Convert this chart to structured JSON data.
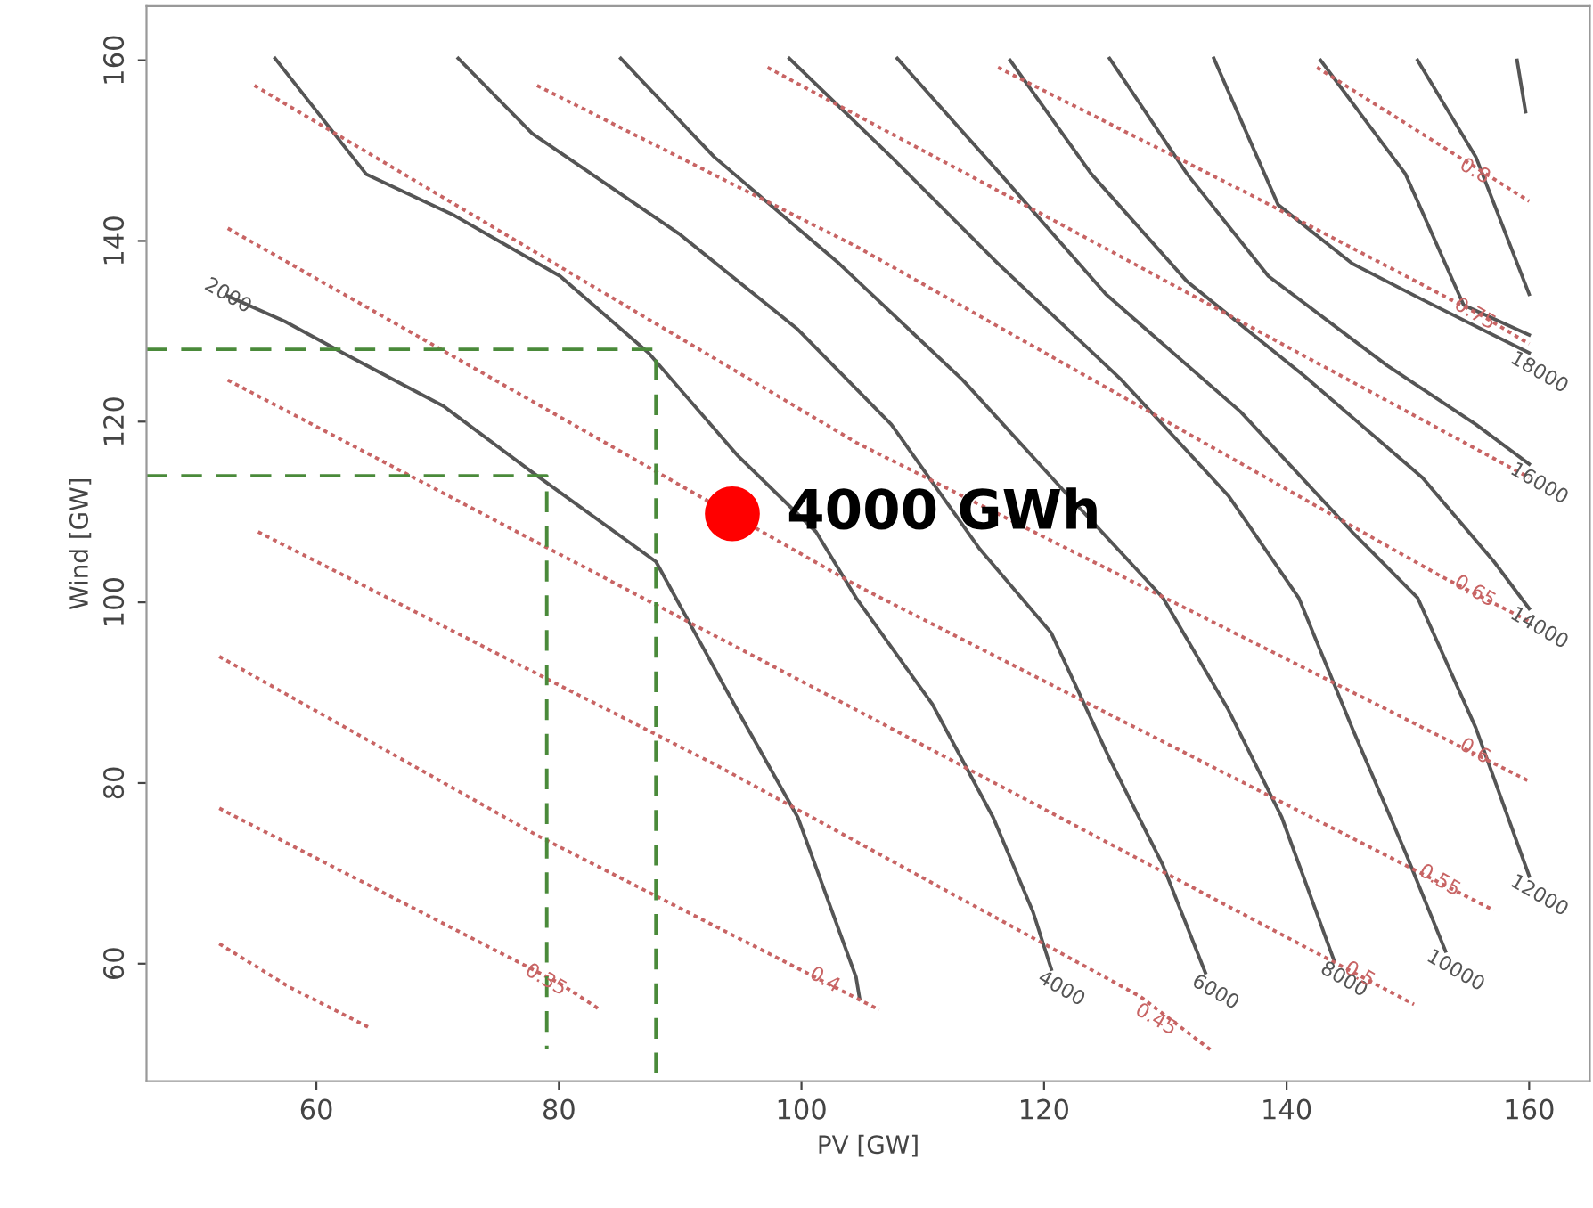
{
  "chart_data": {
    "type": "line",
    "xlabel": "PV [GW]",
    "ylabel": "Wind [GW]",
    "xlim": [
      46,
      165
    ],
    "ylim": [
      47,
      166
    ],
    "xticks": [
      60,
      80,
      100,
      120,
      140,
      160
    ],
    "yticks": [
      60,
      80,
      100,
      120,
      140,
      160
    ],
    "grid": false,
    "legend": false,
    "marker": "none",
    "series": [
      {
        "name": "2000",
        "color": "#555555",
        "line_style": "solid",
        "x": [
          52.7,
          57.4,
          62.2,
          70.5,
          77.8,
          88.0,
          94.7,
          99.7,
          104.5,
          104.8
        ],
        "values": [
          133.9,
          131.1,
          127.6,
          121.7,
          114.4,
          104.5,
          88.1,
          76.2,
          58.5,
          56.1
        ]
      },
      {
        "name": "4000",
        "color": "#555555",
        "line_style": "solid",
        "x": [
          56.6,
          64.1,
          71.4,
          80.1,
          87.4,
          94.7,
          101.2,
          104.5,
          110.8,
          115.8,
          119.1,
          120.6
        ],
        "values": [
          160.2,
          147.4,
          142.8,
          136.1,
          127.6,
          116.3,
          107.8,
          100.5,
          88.7,
          76.2,
          65.7,
          59.4
        ]
      },
      {
        "name": "6000",
        "color": "#555555",
        "line_style": "solid",
        "x": [
          71.7,
          77.8,
          89.9,
          99.7,
          107.4,
          114.7,
          120.6,
          125.4,
          129.8,
          133.3
        ],
        "values": [
          160.2,
          151.9,
          140.8,
          130.2,
          119.7,
          105.9,
          96.6,
          82.7,
          70.9,
          59.0
        ]
      },
      {
        "name": "8000",
        "color": "#555555",
        "line_style": "solid",
        "x": [
          85.1,
          92.8,
          103.1,
          113.3,
          122.0,
          129.8,
          135.2,
          139.6,
          143.9
        ],
        "values": [
          160.2,
          149.3,
          137.5,
          124.6,
          111.8,
          100.5,
          88.1,
          76.2,
          60.4
        ]
      },
      {
        "name": "10000",
        "color": "#555555",
        "line_style": "solid",
        "x": [
          99.0,
          107.4,
          116.2,
          126.4,
          135.2,
          141.0,
          145.4,
          149.8,
          153.1
        ],
        "values": [
          160.2,
          149.3,
          137.5,
          124.6,
          111.8,
          100.5,
          86.1,
          72.3,
          61.4
        ]
      },
      {
        "name": "12000",
        "color": "#555555",
        "line_style": "solid",
        "x": [
          107.9,
          116.4,
          125.1,
          136.2,
          145.4,
          150.8,
          155.6,
          160.0
        ],
        "values": [
          160.2,
          147.4,
          134.1,
          121.1,
          107.8,
          100.5,
          86.1,
          69.7
        ]
      },
      {
        "name": "14000",
        "color": "#555555",
        "line_style": "solid",
        "x": [
          117.2,
          123.9,
          131.8,
          141.5,
          151.2,
          157.1,
          160.0
        ],
        "values": [
          160.0,
          147.4,
          135.5,
          125.0,
          113.8,
          104.5,
          99.3
        ]
      },
      {
        "name": "16000",
        "color": "#555555",
        "line_style": "solid",
        "x": [
          125.4,
          131.8,
          138.5,
          148.3,
          155.6,
          160.0
        ],
        "values": [
          160.2,
          147.4,
          136.1,
          126.2,
          119.7,
          115.3
        ]
      },
      {
        "name": "18000",
        "color": "#555555",
        "line_style": "solid",
        "x": [
          134.0,
          139.3,
          145.4,
          151.2,
          160.0
        ],
        "values": [
          160.2,
          144.0,
          137.5,
          133.5,
          127.6
        ]
      },
      {
        "color": "#555555",
        "line_style": "solid",
        "x": [
          142.8,
          149.8,
          154.6,
          160.0
        ],
        "values": [
          160.0,
          147.4,
          132.9,
          129.6
        ]
      },
      {
        "color": "#555555",
        "line_style": "solid",
        "x": [
          150.8,
          155.6,
          160.0
        ],
        "values": [
          160.0,
          149.3,
          134.1
        ]
      },
      {
        "color": "#555555",
        "line_style": "solid",
        "x": [
          159.0,
          159.7
        ],
        "values": [
          160.0,
          154.3
        ]
      },
      {
        "color": "#c86464",
        "line_style": "dotted",
        "x": [
          52.0,
          57.8,
          64.4
        ],
        "values": [
          62.2,
          57.4,
          52.9
        ]
      },
      {
        "name": "0.35",
        "color": "#c86464",
        "line_style": "dotted",
        "x": [
          52.0,
          80.1,
          83.4
        ],
        "values": [
          77.2,
          57.8,
          54.9
        ]
      },
      {
        "name": "0.4",
        "color": "#c86464",
        "line_style": "dotted",
        "x": [
          52.0,
          78.2,
          106.4
        ],
        "values": [
          94.0,
          74.2,
          54.9
        ]
      },
      {
        "name": "0.45",
        "color": "#c86464",
        "line_style": "dotted",
        "x": [
          55.2,
          92.8,
          127.9,
          133.7
        ],
        "values": [
          107.8,
          82.1,
          56.4,
          50.5
        ]
      },
      {
        "name": "0.5",
        "color": "#c86464",
        "line_style": "dotted",
        "x": [
          52.7,
          104.5,
          150.5
        ],
        "values": [
          124.6,
          88.1,
          55.5
        ]
      },
      {
        "name": "0.55",
        "color": "#c86464",
        "line_style": "dotted",
        "x": [
          52.7,
          104.5,
          157.1
        ],
        "values": [
          141.4,
          101.9,
          65.9
        ]
      },
      {
        "name": "0.6",
        "color": "#c86464",
        "line_style": "dotted",
        "x": [
          54.9,
          104.5,
          160.0
        ],
        "values": [
          157.2,
          117.7,
          80.2
        ]
      },
      {
        "name": "0.65",
        "color": "#c86464",
        "line_style": "dotted",
        "x": [
          78.2,
          104.5,
          152.7,
          160.0
        ],
        "values": [
          157.2,
          139.4,
          102.9,
          97.9
        ]
      },
      {
        "color": "#c86464",
        "line_style": "dotted",
        "x": [
          97.2,
          122.0,
          160.0
        ],
        "values": [
          159.2,
          141.4,
          113.8
        ]
      },
      {
        "name": "0.75",
        "color": "#c86464",
        "line_style": "dotted",
        "x": [
          116.2,
          136.6,
          156.4,
          160.0
        ],
        "values": [
          159.2,
          145.4,
          131.5,
          128.6
        ]
      },
      {
        "name": "0.8",
        "color": "#c86464",
        "line_style": "dotted",
        "x": [
          142.5,
          154.2,
          160.0
        ],
        "values": [
          159.2,
          149.3,
          144.4
        ]
      },
      {
        "color": "#4a8a3a",
        "line_style": "dashed",
        "x": [
          46,
          88,
          88
        ],
        "values": [
          128,
          128,
          47
        ]
      },
      {
        "color": "#4a8a3a",
        "line_style": "dashed",
        "x": [
          46,
          79,
          79
        ],
        "values": [
          114,
          114,
          50.5
        ]
      },
      {
        "type": "scatter",
        "marker": "circle",
        "color": "#ff0000",
        "x": [
          94.3
        ],
        "values": [
          109.8
        ]
      }
    ],
    "annotations": [
      {
        "text": "4000 GWh",
        "x": 94.3,
        "y": 109.8
      }
    ]
  }
}
